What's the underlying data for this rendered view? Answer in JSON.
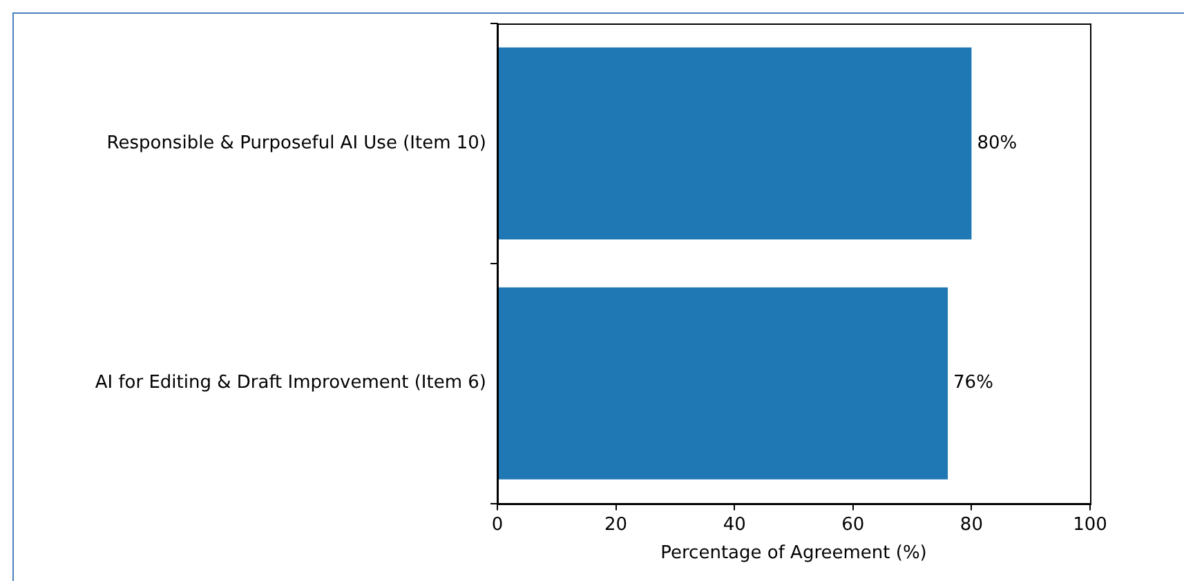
{
  "chart_data": {
    "type": "bar",
    "orientation": "horizontal",
    "categories": [
      "Responsible & Purposeful AI Use (Item 10)",
      "AI for Editing & Draft Improvement (Item 6)"
    ],
    "values": [
      80,
      76
    ],
    "value_labels": [
      "80%",
      "76%"
    ],
    "color": "#1f77b4",
    "xlabel": "Percentage of Agreement (%)",
    "xlim": [
      0,
      100
    ],
    "xticks": [
      0,
      20,
      40,
      60,
      80,
      100
    ],
    "grid": false,
    "legend": false
  }
}
